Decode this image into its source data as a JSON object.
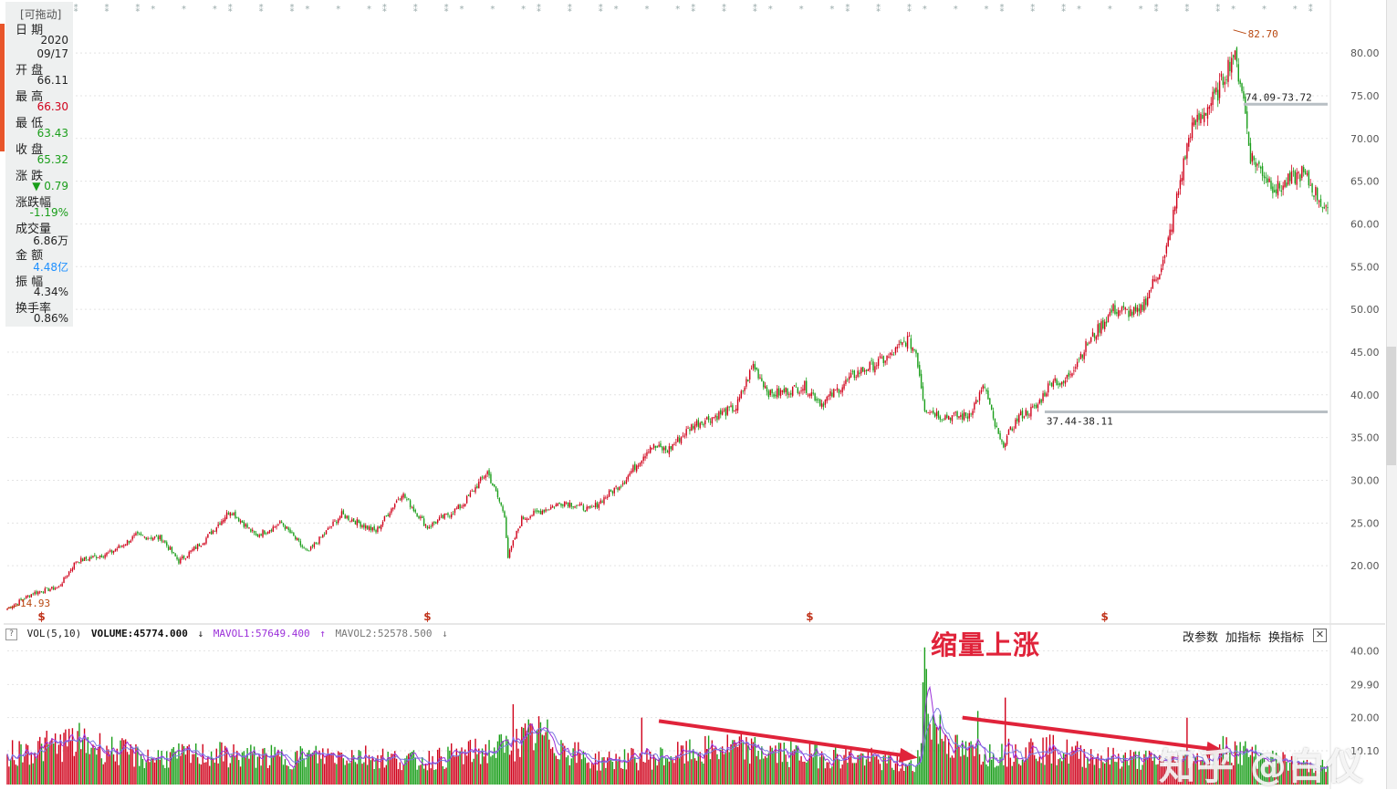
{
  "info_panel": {
    "header": "[可拖动]",
    "rows": [
      {
        "label": "日  期",
        "value": "2020",
        "value2": "09/17",
        "color": "#222222"
      },
      {
        "label": "开  盘",
        "value": "66.11",
        "color": "#222222"
      },
      {
        "label": "最  高",
        "value": "66.30",
        "color": "#d0021b"
      },
      {
        "label": "最  低",
        "value": "63.43",
        "color": "#1a9e1a"
      },
      {
        "label": "收  盘",
        "value": "65.32",
        "color": "#1a9e1a"
      },
      {
        "label": "涨  跌",
        "value": "▼ 0.79",
        "color": "#1a9e1a"
      },
      {
        "label": "涨跌幅",
        "value": "-1.19%",
        "color": "#1a9e1a"
      },
      {
        "label": "成交量",
        "value": "6.86万",
        "color": "#222222"
      },
      {
        "label": "金  额",
        "value": "4.48亿",
        "color": "#1e90ff"
      },
      {
        "label": "振  幅",
        "value": "4.34%",
        "color": "#222222"
      },
      {
        "label": "换手率",
        "value": "0.86%",
        "color": "#222222"
      }
    ]
  },
  "volume_legend": {
    "help": "?",
    "name": "VOL(5,10)",
    "volume": "VOLUME:45774.000",
    "volume_arrow": "↓",
    "mavol1": "MAVOL1:57649.400",
    "mavol1_arrow": "↑",
    "mavol2": "MAVOL2:52578.500",
    "mavol2_arrow": "↓"
  },
  "toolbar": {
    "modify_params": "改参数",
    "add_indicator": "加指标",
    "switch_indicator": "换指标",
    "close": "✕"
  },
  "annotation": "缩量上涨",
  "watermark": "知乎 @白仪",
  "colors": {
    "up": "#d0021b",
    "down": "#1a9e1a",
    "mavol1": "#9b30d9",
    "mavol2": "#7a7ae0",
    "arrow": "#e0233a",
    "level_line": "#b8bfc4",
    "marker": "#b8470f"
  },
  "chart_data": [
    {
      "type": "candlestick",
      "title": "",
      "ylim": [
        15,
        83
      ],
      "y_ticks": [
        "80.00",
        "75.00",
        "70.00",
        "65.00",
        "60.00",
        "55.00",
        "50.00",
        "45.00",
        "40.00",
        "35.00",
        "30.00",
        "25.00",
        "20.00"
      ],
      "trend_close": [
        [
          0,
          15.0
        ],
        [
          15,
          16.8
        ],
        [
          30,
          17.5
        ],
        [
          40,
          20.5
        ],
        [
          60,
          21.5
        ],
        [
          75,
          23.5
        ],
        [
          90,
          23.2
        ],
        [
          100,
          20.5
        ],
        [
          115,
          23.0
        ],
        [
          130,
          26.5
        ],
        [
          145,
          23.5
        ],
        [
          160,
          25.0
        ],
        [
          175,
          21.5
        ],
        [
          195,
          26.0
        ],
        [
          215,
          24.0
        ],
        [
          230,
          28.5
        ],
        [
          245,
          24.5
        ],
        [
          265,
          27.0
        ],
        [
          280,
          31.0
        ],
        [
          290,
          26.0
        ],
        [
          292,
          21.0
        ],
        [
          300,
          25.5
        ],
        [
          325,
          27.5
        ],
        [
          340,
          26.5
        ],
        [
          360,
          30.0
        ],
        [
          375,
          34.0
        ],
        [
          385,
          33.5
        ],
        [
          400,
          36.5
        ],
        [
          425,
          38.5
        ],
        [
          435,
          43.5
        ],
        [
          445,
          40.0
        ],
        [
          465,
          41.0
        ],
        [
          475,
          39.0
        ],
        [
          495,
          42.5
        ],
        [
          515,
          44.5
        ],
        [
          525,
          46.5
        ],
        [
          530,
          45.0
        ],
        [
          535,
          38.5
        ],
        [
          545,
          37.5
        ],
        [
          560,
          37.5
        ],
        [
          570,
          41.0
        ],
        [
          575,
          37.0
        ],
        [
          580,
          34.0
        ],
        [
          590,
          37.5
        ],
        [
          600,
          38.5
        ],
        [
          610,
          42.0
        ],
        [
          615,
          41.0
        ],
        [
          630,
          46.0
        ],
        [
          645,
          50.0
        ],
        [
          660,
          49.5
        ],
        [
          675,
          56.0
        ],
        [
          690,
          71.0
        ],
        [
          705,
          75.0
        ],
        [
          715,
          80.0
        ],
        [
          720,
          76.0
        ],
        [
          725,
          68.0
        ],
        [
          740,
          64.0
        ],
        [
          755,
          66.0
        ],
        [
          765,
          63.0
        ],
        [
          770,
          61.0
        ]
      ],
      "labels": {
        "high_marker": "82.70",
        "low_marker": "14.93",
        "upper_band": "74.09-73.72",
        "lower_band": "37.44-38.11"
      },
      "levels": [
        {
          "from_bar": 721,
          "to_bar": 770,
          "value": 74.0
        },
        {
          "from_bar": 605,
          "to_bar": 770,
          "value": 38.0
        }
      ],
      "event_markers": [
        {
          "bar": 20,
          "label": "$"
        },
        {
          "bar": 245,
          "label": "$"
        },
        {
          "bar": 468,
          "label": "$"
        },
        {
          "bar": 640,
          "label": "$"
        }
      ]
    },
    {
      "type": "bar",
      "title": "VOL(5,10)",
      "ylim": [
        0,
        42
      ],
      "y_ticks": [
        "40.00",
        "29.90",
        "20.00",
        "10.10"
      ],
      "trend_volume": [
        [
          0,
          9
        ],
        [
          40,
          13
        ],
        [
          80,
          8
        ],
        [
          120,
          9
        ],
        [
          160,
          8
        ],
        [
          200,
          9
        ],
        [
          240,
          7
        ],
        [
          290,
          11
        ],
        [
          310,
          15
        ],
        [
          340,
          7
        ],
        [
          380,
          8
        ],
        [
          420,
          11
        ],
        [
          460,
          9
        ],
        [
          500,
          8
        ],
        [
          530,
          5
        ],
        [
          535,
          30
        ],
        [
          540,
          18
        ],
        [
          555,
          10
        ],
        [
          575,
          9
        ],
        [
          600,
          11
        ],
        [
          640,
          8
        ],
        [
          680,
          7
        ],
        [
          705,
          8
        ],
        [
          710,
          11
        ],
        [
          740,
          7
        ],
        [
          770,
          5
        ]
      ],
      "spikes": [
        [
          295,
          24
        ],
        [
          370,
          20
        ],
        [
          535,
          41
        ],
        [
          566,
          22
        ],
        [
          582,
          26
        ],
        [
          688,
          20
        ]
      ],
      "arrows": [
        {
          "from_bar": 380,
          "from_value": 19,
          "to_bar": 531,
          "to_value": 8
        },
        {
          "from_bar": 557,
          "from_value": 20,
          "to_bar": 710,
          "to_value": 10
        }
      ]
    }
  ]
}
